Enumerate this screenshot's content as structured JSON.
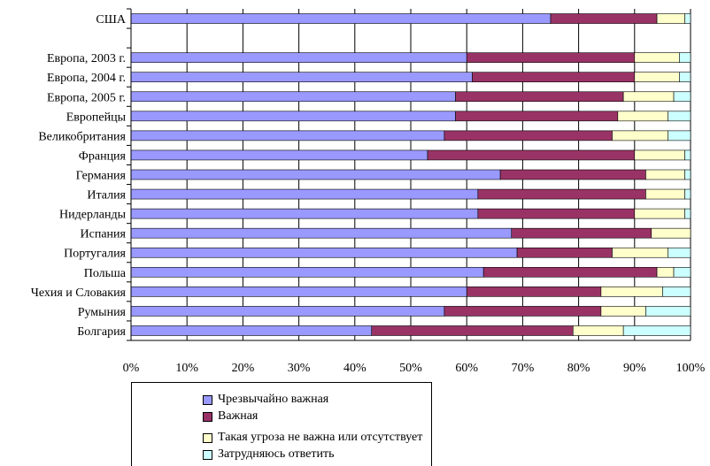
{
  "chart_data": {
    "type": "bar",
    "orientation": "horizontal",
    "stacked": true,
    "percent": true,
    "categories": [
      "США",
      "",
      "Европа, 2003 г.",
      "Европа, 2004 г.",
      "Европа, 2005 г.",
      "Европейцы",
      "Великобритания",
      "Франция",
      "Германия",
      "Италия",
      "Нидерланды",
      "Испания",
      "Португалия",
      "Польша",
      "Чехия и Словакия",
      "Румыния",
      "Болгария"
    ],
    "series": [
      {
        "name": "Чрезвычайно важная",
        "color": "#9999ff",
        "values": [
          75,
          null,
          60,
          61,
          58,
          58,
          56,
          53,
          66,
          62,
          62,
          68,
          69,
          63,
          60,
          56,
          43
        ]
      },
      {
        "name": "Важная",
        "color": "#993366",
        "values": [
          19,
          null,
          30,
          29,
          30,
          29,
          30,
          37,
          26,
          30,
          28,
          25,
          17,
          31,
          24,
          28,
          36
        ]
      },
      {
        "name": "Такая угроза не важна или отсутствует",
        "color": "#ffffcc",
        "values": [
          5,
          null,
          8,
          8,
          9,
          9,
          10,
          9,
          7,
          7,
          9,
          7,
          10,
          3,
          11,
          8,
          9
        ]
      },
      {
        "name": "Затрудняюсь ответить",
        "color": "#ccffff",
        "values": [
          1,
          null,
          2,
          2,
          3,
          4,
          4,
          1,
          1,
          1,
          1,
          0,
          4,
          3,
          5,
          8,
          12
        ]
      }
    ],
    "x_ticks": [
      "0%",
      "10%",
      "20%",
      "30%",
      "40%",
      "50%",
      "60%",
      "70%",
      "80%",
      "90%",
      "100%"
    ],
    "xlim": [
      0,
      100
    ],
    "grid": "vertical",
    "legend": "bottom"
  }
}
